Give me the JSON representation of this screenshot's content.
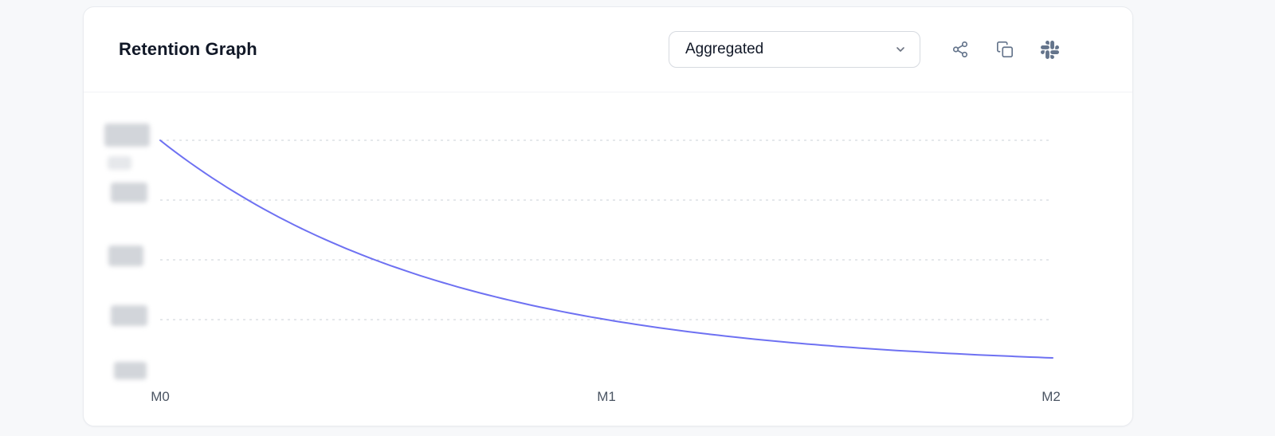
{
  "page": {
    "background": "#f7f8fa"
  },
  "card": {
    "title": "Retention Graph",
    "dropdown": {
      "value": "Aggregated"
    },
    "toolbar_icons": [
      "share",
      "copy",
      "slack"
    ]
  },
  "chart_data": {
    "type": "line",
    "title": "Retention Graph",
    "x_tick_labels": [
      "M0",
      "M1",
      "M2"
    ],
    "series": [
      {
        "name": "Aggregated",
        "values": [
          100,
          25,
          9
        ]
      }
    ],
    "values_note": "y-axis tick labels are blurred/redacted in the screenshot; series values estimated from gridline positions, normalized 0-100",
    "y_axis": {
      "gridline_values": [
        100,
        75,
        50,
        25
      ],
      "tick_count": 5,
      "labels_redacted": true,
      "range": [
        0,
        100
      ]
    },
    "grid": "dashed-horizontal",
    "line_color": "#6e71f2",
    "legend": "none"
  },
  "colors": {
    "accent_line": "#6e71f2",
    "card_border": "#e9ebef",
    "icon_gray": "#64748b",
    "tick_label": "#4b5563"
  }
}
